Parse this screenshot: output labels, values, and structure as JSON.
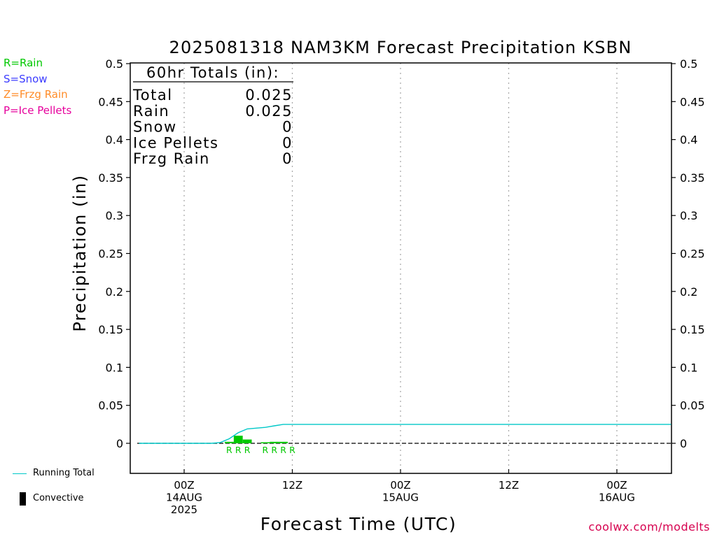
{
  "chart_data": {
    "type": "bar",
    "title": "2025081318 NAM3KM Forecast Precipitation KSBN",
    "xlabel": "Forecast Time (UTC)",
    "ylabel": "Precipitation (in)",
    "ylim": [
      -0.04,
      0.5
    ],
    "yticks": [
      "0",
      "0.05",
      "0.1",
      "0.15",
      "0.2",
      "0.25",
      "0.3",
      "0.35",
      "0.4",
      "0.45",
      "0.5"
    ],
    "grid": true,
    "x_tick_labels": [
      {
        "time": "2025-08-14T00Z",
        "lines": [
          "00Z",
          "14AUG",
          "2025"
        ]
      },
      {
        "time": "2025-08-14T12Z",
        "lines": [
          "12Z"
        ]
      },
      {
        "time": "2025-08-15T00Z",
        "lines": [
          "00Z",
          "15AUG"
        ]
      },
      {
        "time": "2025-08-15T12Z",
        "lines": [
          "12Z"
        ]
      },
      {
        "time": "2025-08-16T00Z",
        "lines": [
          "00Z",
          "16AUG"
        ]
      }
    ],
    "hourly_bars": [
      {
        "time": "2025-08-14T05Z",
        "value": 0.002,
        "type_label": "R"
      },
      {
        "time": "2025-08-14T06Z",
        "value": 0.01,
        "type_label": "R"
      },
      {
        "time": "2025-08-14T07Z",
        "value": 0.005,
        "type_label": "R"
      },
      {
        "time": "2025-08-14T09Z",
        "value": 0.001,
        "type_label": "R"
      },
      {
        "time": "2025-08-14T10Z",
        "value": 0.002,
        "type_label": "R"
      },
      {
        "time": "2025-08-14T11Z",
        "value": 0.002,
        "type_label": "R"
      },
      {
        "time": "2025-08-14T12Z",
        "value": 0.0,
        "type_label": "R"
      }
    ],
    "running_total": {
      "name": "Running Total",
      "color": "#00c8c8",
      "points": [
        {
          "time": "2025-08-13T19Z",
          "value": 0.0
        },
        {
          "time": "2025-08-14T03Z",
          "value": 0.0
        },
        {
          "time": "2025-08-14T04Z",
          "value": 0.001
        },
        {
          "time": "2025-08-14T05Z",
          "value": 0.006
        },
        {
          "time": "2025-08-14T06Z",
          "value": 0.014
        },
        {
          "time": "2025-08-14T07Z",
          "value": 0.019
        },
        {
          "time": "2025-08-14T08Z",
          "value": 0.02
        },
        {
          "time": "2025-08-14T09Z",
          "value": 0.021
        },
        {
          "time": "2025-08-14T10Z",
          "value": 0.023
        },
        {
          "time": "2025-08-14T11Z",
          "value": 0.025
        },
        {
          "time": "2025-08-14T12Z",
          "value": 0.025
        },
        {
          "time": "2025-08-16T06Z",
          "value": 0.025
        }
      ]
    },
    "totals_box": {
      "header": "60hr Totals (in):",
      "rows": [
        {
          "label": "Total",
          "value": "0.025"
        },
        {
          "label": "Rain",
          "value": "0.025"
        },
        {
          "label": "Snow",
          "value": "0"
        },
        {
          "label": "Ice Pellets",
          "value": "0"
        },
        {
          "label": "Frzg Rain",
          "value": "0"
        }
      ]
    },
    "colors": {
      "rain": "#00c800",
      "total": "#00c8c8",
      "axis": "#000000",
      "grid": "#aaaaaa"
    }
  },
  "type_legend": [
    {
      "text": "R=Rain",
      "color": "#00c800"
    },
    {
      "text": "S=Snow",
      "color": "#3c3cff"
    },
    {
      "text": "Z=Frzg Rain",
      "color": "#ff8c28"
    },
    {
      "text": "P=Ice Pellets",
      "color": "#e6009c"
    }
  ],
  "key_legend": {
    "running_total": "Running Total",
    "convective": "Convective"
  },
  "credit": "coolwx.com/modelts"
}
